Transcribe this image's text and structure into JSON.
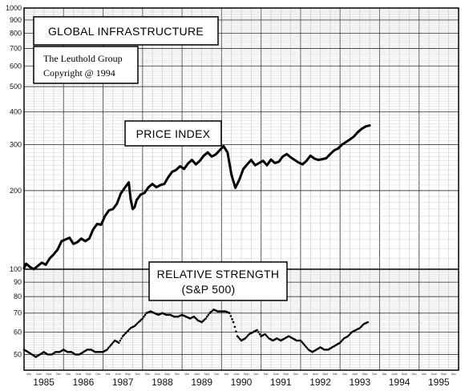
{
  "chart_data": {
    "type": "line",
    "title": "GLOBAL INFRASTRUCTURE",
    "source_lines": [
      "The Leuthold Group",
      "Copyright @ 1994"
    ],
    "x_years": [
      "1985",
      "1986",
      "1987",
      "1988",
      "1989",
      "1990",
      "1991",
      "1992",
      "1993",
      "1994",
      "1995"
    ],
    "x_range": [
      1985.0,
      1996.0
    ],
    "month_labels": [
      "Mar",
      "June",
      "Sept",
      "Dec"
    ],
    "grid": true,
    "panels": [
      {
        "name": "price",
        "label": "PRICE INDEX",
        "scale": "log",
        "ylim": [
          100,
          1000
        ],
        "yticks": [
          100,
          200,
          300,
          400,
          500,
          600,
          700,
          800,
          900,
          1000
        ],
        "ytick_labels": [
          "",
          "200",
          "300",
          "400",
          "500",
          "600",
          "700",
          "800",
          "900",
          "1000"
        ],
        "series": {
          "style": "solid",
          "x": [
            1985.0,
            1985.05,
            1985.15,
            1985.25,
            1985.35,
            1985.45,
            1985.55,
            1985.65,
            1985.75,
            1985.85,
            1985.95,
            1986.05,
            1986.15,
            1986.25,
            1986.35,
            1986.45,
            1986.55,
            1986.65,
            1986.75,
            1986.85,
            1986.95,
            1987.05,
            1987.15,
            1987.25,
            1987.35,
            1987.45,
            1987.55,
            1987.65,
            1987.7,
            1987.75,
            1987.8,
            1987.85,
            1987.95,
            1988.05,
            1988.15,
            1988.25,
            1988.35,
            1988.45,
            1988.55,
            1988.65,
            1988.75,
            1988.85,
            1988.95,
            1989.05,
            1989.15,
            1989.25,
            1989.35,
            1989.45,
            1989.55,
            1989.65,
            1989.75,
            1989.85,
            1989.95,
            1990.05,
            1990.15,
            1990.25,
            1990.35,
            1990.45,
            1990.55,
            1990.65,
            1990.75,
            1990.85,
            1990.95,
            1991.05,
            1991.15,
            1991.25,
            1991.35,
            1991.45,
            1991.55,
            1991.65,
            1991.75,
            1991.85,
            1991.95,
            1992.05,
            1992.15,
            1992.25,
            1992.35,
            1992.45,
            1992.55,
            1992.65,
            1992.75,
            1992.85,
            1992.95,
            1993.05,
            1993.15,
            1993.25,
            1993.35,
            1993.45,
            1993.55,
            1993.65,
            1993.75
          ],
          "y": [
            101,
            105,
            102,
            100,
            103,
            106,
            104,
            110,
            114,
            119,
            128,
            130,
            132,
            125,
            127,
            131,
            128,
            131,
            142,
            149,
            148,
            160,
            168,
            170,
            178,
            195,
            205,
            215,
            185,
            170,
            173,
            184,
            193,
            196,
            206,
            212,
            206,
            210,
            212,
            225,
            236,
            240,
            248,
            242,
            254,
            262,
            252,
            260,
            272,
            280,
            270,
            275,
            285,
            296,
            280,
            230,
            205,
            220,
            242,
            252,
            262,
            250,
            255,
            260,
            250,
            263,
            255,
            258,
            270,
            276,
            268,
            262,
            256,
            252,
            260,
            272,
            265,
            262,
            264,
            266,
            276,
            285,
            290,
            300,
            307,
            314,
            322,
            335,
            345,
            352,
            355
          ]
        }
      },
      {
        "name": "relative",
        "label_lines": [
          "RELATIVE STRENGTH",
          "(S&P 500)"
        ],
        "scale": "log",
        "ylim": [
          44,
          100
        ],
        "yticks": [
          50,
          60,
          70,
          80,
          90,
          100
        ],
        "ytick_labels": [
          "50",
          "60",
          "70",
          "80",
          "90",
          "100"
        ],
        "series": {
          "style": "dotted",
          "x": [
            1985.0,
            1985.1,
            1985.2,
            1985.3,
            1985.4,
            1985.5,
            1985.6,
            1985.7,
            1985.8,
            1985.9,
            1986.0,
            1986.1,
            1986.2,
            1986.3,
            1986.4,
            1986.5,
            1986.6,
            1986.7,
            1986.8,
            1986.9,
            1987.0,
            1987.1,
            1987.2,
            1987.3,
            1987.4,
            1987.5,
            1987.6,
            1987.7,
            1987.8,
            1987.9,
            1988.0,
            1988.1,
            1988.2,
            1988.3,
            1988.4,
            1988.5,
            1988.6,
            1988.7,
            1988.8,
            1988.9,
            1989.0,
            1989.1,
            1989.2,
            1989.3,
            1989.4,
            1989.5,
            1989.6,
            1989.7,
            1989.8,
            1989.9,
            1990.0,
            1990.1,
            1990.2,
            1990.3,
            1990.4,
            1990.5,
            1990.6,
            1990.7,
            1990.8,
            1990.9,
            1991.0,
            1991.1,
            1991.2,
            1991.3,
            1991.4,
            1991.5,
            1991.6,
            1991.7,
            1991.8,
            1991.9,
            1992.0,
            1992.1,
            1992.2,
            1992.3,
            1992.4,
            1992.5,
            1992.6,
            1992.7,
            1992.8,
            1992.9,
            1993.0,
            1993.1,
            1993.2,
            1993.3,
            1993.4,
            1993.5,
            1993.6,
            1993.7
          ],
          "y": [
            52,
            51,
            50,
            49,
            50,
            51,
            50,
            50,
            51,
            51,
            52,
            51,
            51,
            50,
            50,
            51,
            52,
            52,
            51,
            51,
            51,
            52,
            54,
            56,
            55,
            58,
            60,
            62,
            63,
            65,
            67,
            70,
            71,
            70,
            69,
            70,
            69,
            69,
            68,
            68,
            69,
            68,
            67,
            68,
            66,
            65,
            67,
            70,
            72,
            71,
            71,
            71,
            70,
            65,
            58,
            56,
            57,
            59,
            60,
            61,
            58,
            59,
            57,
            56,
            57,
            56,
            57,
            58,
            57,
            56,
            56,
            54,
            52,
            51,
            52,
            53,
            52,
            52,
            53,
            54,
            55,
            57,
            58,
            60,
            61,
            62,
            64,
            65
          ]
        }
      }
    ]
  }
}
